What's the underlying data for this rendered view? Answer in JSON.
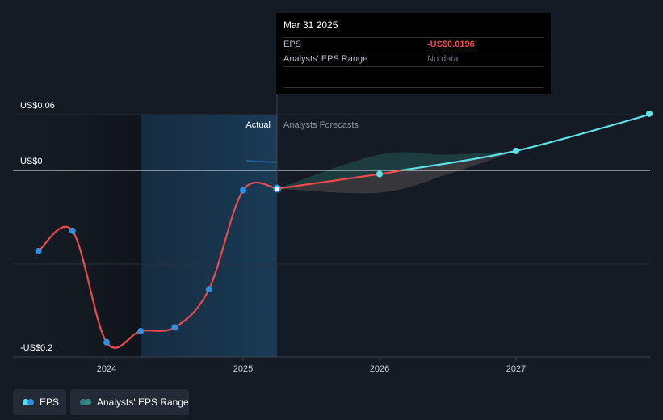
{
  "chart_data": {
    "type": "line",
    "x_ticks": [
      "2024",
      "2025",
      "2026",
      "2027"
    ],
    "y_labels": {
      "top": "US$0.06",
      "zero": "US$0",
      "bottom": "-US$0.2"
    },
    "ylim": [
      -0.2,
      0.06
    ],
    "region_labels": {
      "actual": "Actual",
      "forecast": "Analysts Forecasts"
    },
    "series": [
      {
        "name": "EPS",
        "kind": "actual",
        "points": [
          {
            "x": 2023.5,
            "y": -0.087
          },
          {
            "x": 2023.75,
            "y": -0.065
          },
          {
            "x": 2024.0,
            "y": -0.185
          },
          {
            "x": 2024.25,
            "y": -0.173
          },
          {
            "x": 2024.5,
            "y": -0.169
          },
          {
            "x": 2024.75,
            "y": -0.128
          },
          {
            "x": 2025.0,
            "y": -0.0215
          },
          {
            "x": 2025.25,
            "y": -0.0196
          }
        ]
      },
      {
        "name": "EPS",
        "kind": "forecast",
        "points": [
          {
            "x": 2025.25,
            "y": -0.0196
          },
          {
            "x": 2026.0,
            "y": -0.004
          },
          {
            "x": 2027.0,
            "y": 0.021
          },
          {
            "x": 2028.0,
            "y": 0.061
          }
        ]
      },
      {
        "name": "Analysts' EPS Range",
        "kind": "range",
        "upper": [
          {
            "x": 2025.25,
            "y": -0.0196
          },
          {
            "x": 2026.0,
            "y": 0.017
          },
          {
            "x": 2026.5,
            "y": 0.017
          },
          {
            "x": 2027.0,
            "y": 0.021
          }
        ],
        "lower": [
          {
            "x": 2025.25,
            "y": -0.0196
          },
          {
            "x": 2026.0,
            "y": -0.024
          },
          {
            "x": 2026.5,
            "y": -0.004
          },
          {
            "x": 2027.0,
            "y": 0.021
          }
        ]
      }
    ],
    "legend": [
      {
        "label": "EPS",
        "colors": [
          "#5fe2e5",
          "#2e8fe0"
        ]
      },
      {
        "label": "Analysts' EPS Range",
        "colors": [
          "#2f7f7d",
          "#3b8c89"
        ]
      }
    ]
  },
  "tooltip": {
    "date": "Mar 31 2025",
    "rows": [
      {
        "label": "EPS",
        "value": "-US$0.0196"
      },
      {
        "label": "Analysts' EPS Range",
        "value": "No data"
      }
    ]
  },
  "colors": {
    "background": "#151b24",
    "eps_actual_line": "#e94b4b",
    "eps_forecast_line": "#5fe2e5",
    "actual_marker": "#2e8fe0",
    "forecast_marker": "#5fe2e5"
  }
}
